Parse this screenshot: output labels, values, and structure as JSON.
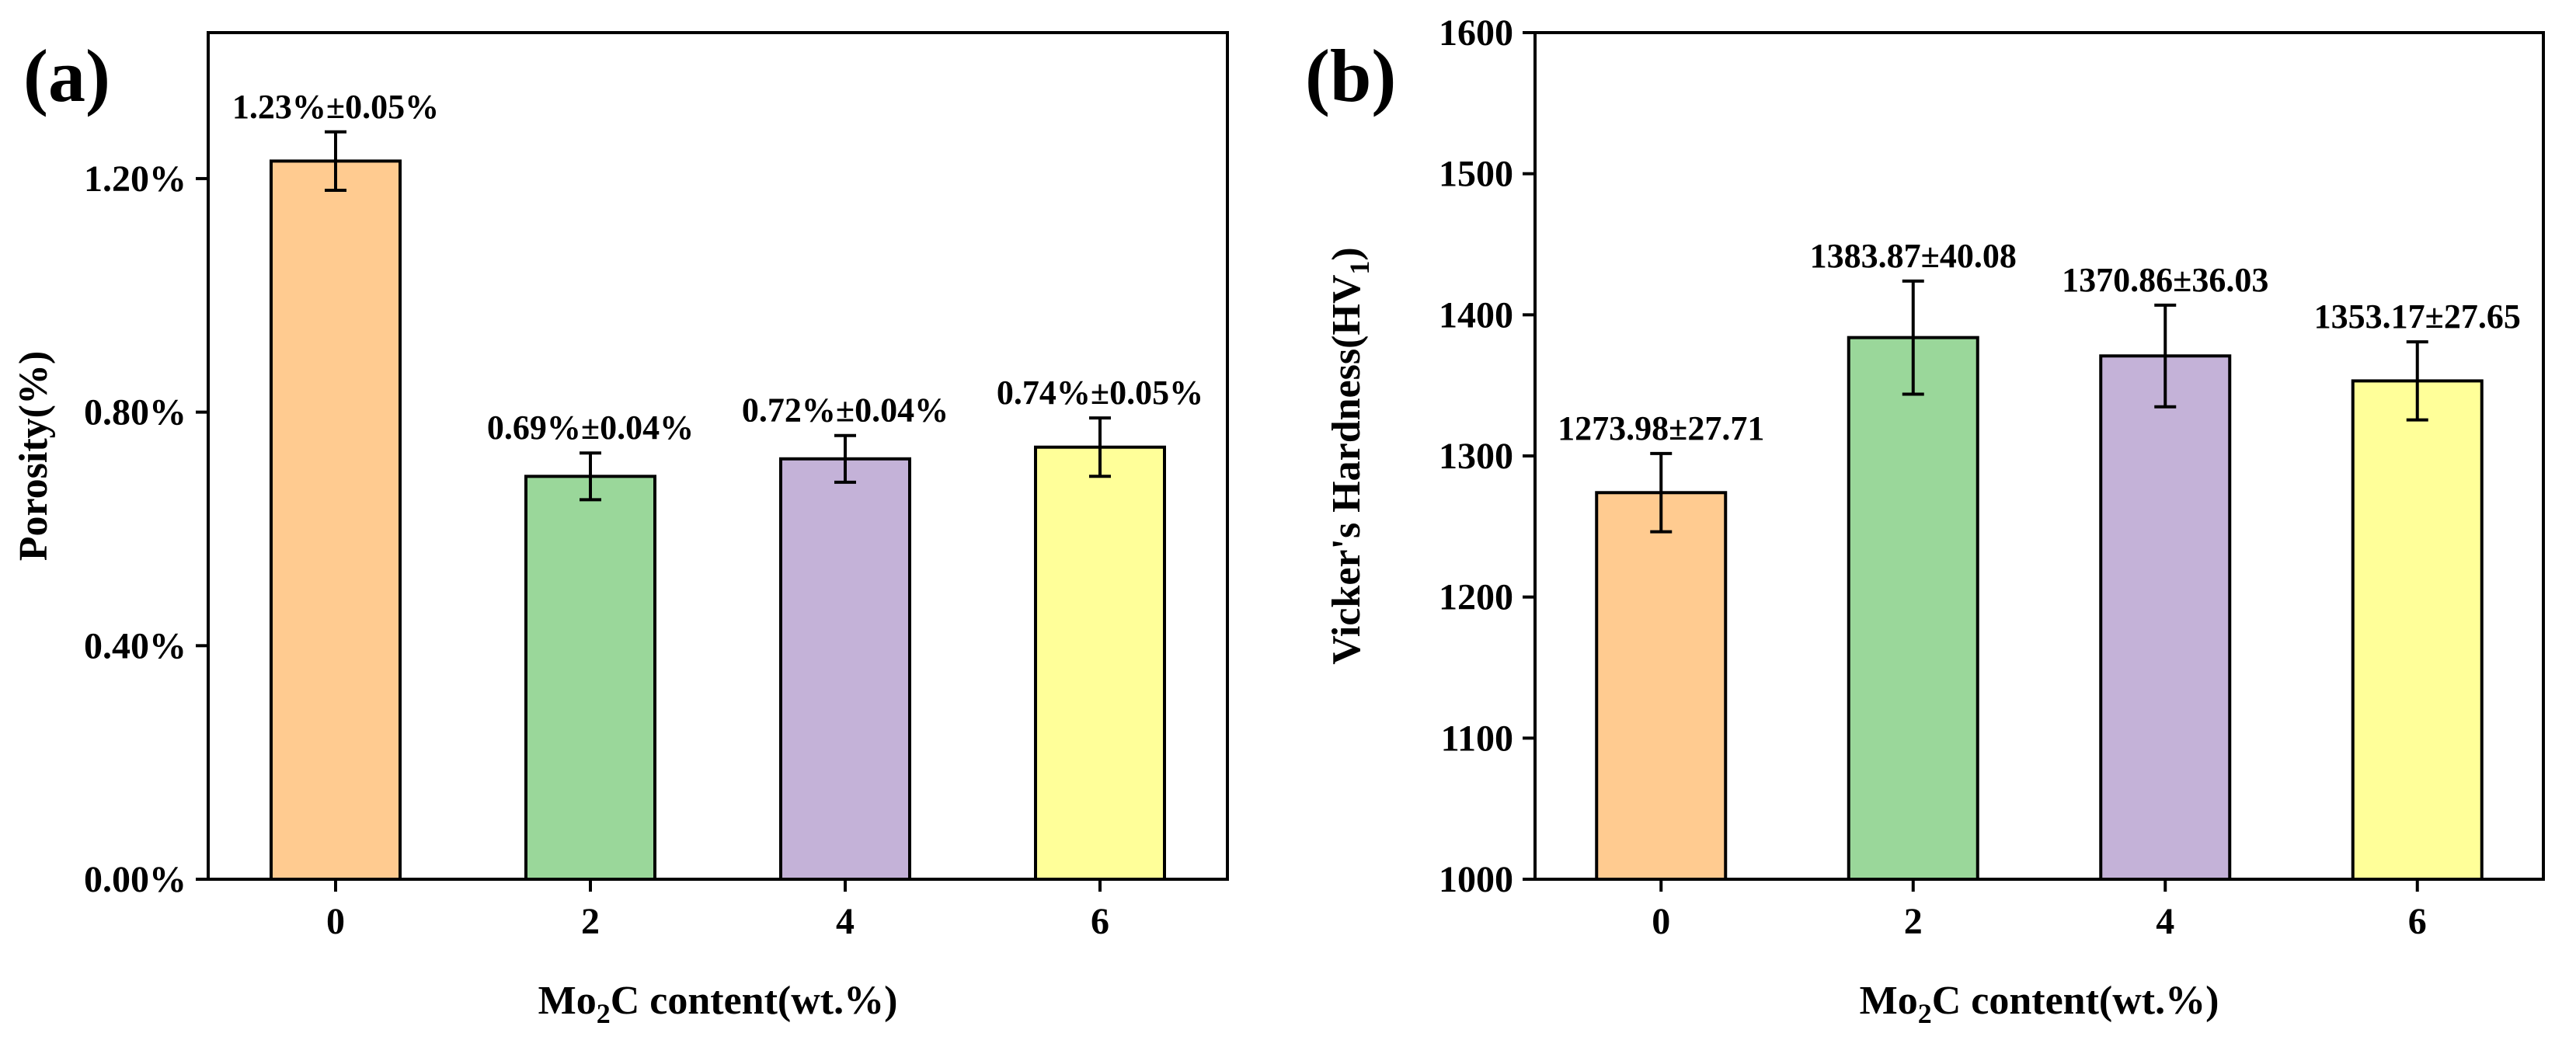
{
  "colors": {
    "bar_colors": [
      "#FFCB90",
      "#9AD79A",
      "#C4B2D8",
      "#FFFF99"
    ],
    "axis": "#000000"
  },
  "chart_data": [
    {
      "type": "bar",
      "panel_label": "(a)",
      "title": "",
      "xlabel": "Mo₂C content(wt.%)",
      "ylabel": "Porosity(%)",
      "categories": [
        "0",
        "2",
        "4",
        "6"
      ],
      "values": [
        1.23,
        0.69,
        0.72,
        0.74
      ],
      "errors": [
        0.05,
        0.04,
        0.04,
        0.05
      ],
      "data_labels": [
        "1.23%±0.05%",
        "0.69%±0.04%",
        "0.72%±0.04%",
        "0.74%±0.05%"
      ],
      "ylim": [
        0,
        1.45
      ],
      "yticks": [
        0,
        0.4,
        0.8,
        1.2
      ],
      "ytick_labels": [
        "0.00%",
        "0.40%",
        "0.80%",
        "1.20%"
      ],
      "grid": false
    },
    {
      "type": "bar",
      "panel_label": "(b)",
      "title": "",
      "xlabel": "Mo₂C content(wt.%)",
      "ylabel": "Vicker's Hardness(HV₁)",
      "categories": [
        "0",
        "2",
        "4",
        "6"
      ],
      "values": [
        1273.98,
        1383.87,
        1370.86,
        1353.17
      ],
      "errors": [
        27.71,
        40.08,
        36.03,
        27.65
      ],
      "data_labels": [
        "1273.98±27.71",
        "1383.87±40.08",
        "1370.86±36.03",
        "1353.17±27.65"
      ],
      "ylim": [
        1000,
        1600
      ],
      "yticks": [
        1000,
        1100,
        1200,
        1300,
        1400,
        1500,
        1600
      ],
      "ytick_labels": [
        "1000",
        "1100",
        "1200",
        "1300",
        "1400",
        "1500",
        "1600"
      ],
      "grid": false
    }
  ]
}
